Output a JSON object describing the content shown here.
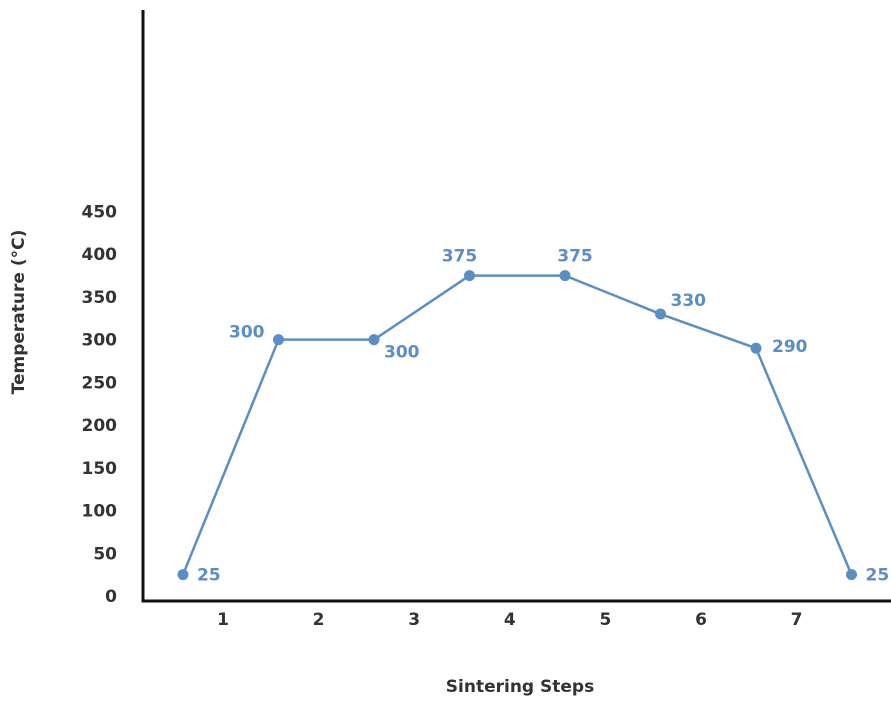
{
  "chart_data": {
    "type": "line",
    "title": "",
    "xlabel": "Sintering Steps",
    "ylabel": "Temperature (°C)",
    "x_ticks": [
      "1",
      "2",
      "3",
      "4",
      "5",
      "6",
      "7"
    ],
    "y_ticks": [
      "0",
      "50",
      "100",
      "150",
      "200",
      "250",
      "300",
      "350",
      "400",
      "450"
    ],
    "ylim": [
      0,
      450
    ],
    "grid": false,
    "series": [
      {
        "x": [
          0.5,
          1.5,
          2.5,
          3.5,
          4.5,
          5.5,
          6.5,
          7.5
        ],
        "values": [
          25,
          300,
          300,
          375,
          375,
          330,
          290,
          25
        ],
        "data_labels": [
          "25",
          "300",
          "300",
          "375",
          "375",
          "330",
          "290",
          "25"
        ],
        "color": "#5b8ec4"
      }
    ]
  }
}
